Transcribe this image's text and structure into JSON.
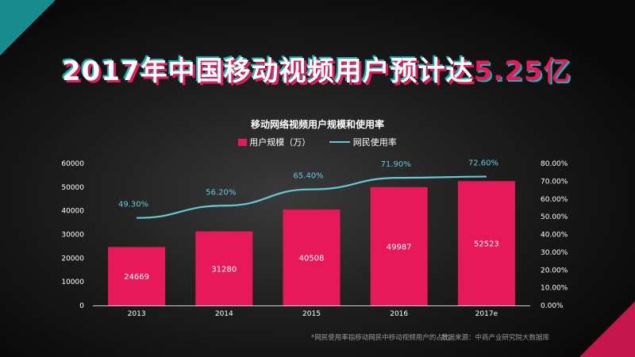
{
  "title": {
    "main": "2017年中国移动视频用户预计达",
    "highlight": "5.25亿"
  },
  "chart_data": {
    "type": "bar",
    "title": "移动网络视频用户规模和使用率",
    "categories": [
      "2013",
      "2014",
      "2015",
      "2016",
      "2017e"
    ],
    "series": [
      {
        "name": "用户规模（万）",
        "type": "bar",
        "axis": "left",
        "values": [
          24669,
          31280,
          40508,
          49987,
          52523
        ],
        "labels": [
          "24669",
          "31280",
          "40508",
          "49987",
          "52523"
        ]
      },
      {
        "name": "网民使用率",
        "type": "line",
        "axis": "right",
        "values": [
          49.3,
          56.2,
          65.4,
          71.9,
          72.6
        ],
        "labels": [
          "49.30%",
          "56.20%",
          "65.40%",
          "71.90%",
          "72.60%"
        ]
      }
    ],
    "ylim_left": [
      0,
      60000
    ],
    "yticks_left": [
      "0",
      "10000",
      "20000",
      "30000",
      "40000",
      "50000",
      "60000"
    ],
    "ylim_right": [
      0,
      80
    ],
    "yticks_right": [
      "0.00%",
      "10.00%",
      "20.00%",
      "30.00%",
      "40.00%",
      "50.00%",
      "60.00%",
      "70.00%",
      "80.00%"
    ],
    "legend_position": "top-center",
    "grid": false
  },
  "footnote": "*网民使用率指移动网民中移动视频用户的占比",
  "source": "数据来源：中商产业研究院大数据库",
  "colors": {
    "bar": "#e8195a",
    "line": "#63c9d6",
    "line_label": "#63c9d6",
    "axis_text": "#ffffff",
    "accent_teal": "#1aa3a3"
  }
}
